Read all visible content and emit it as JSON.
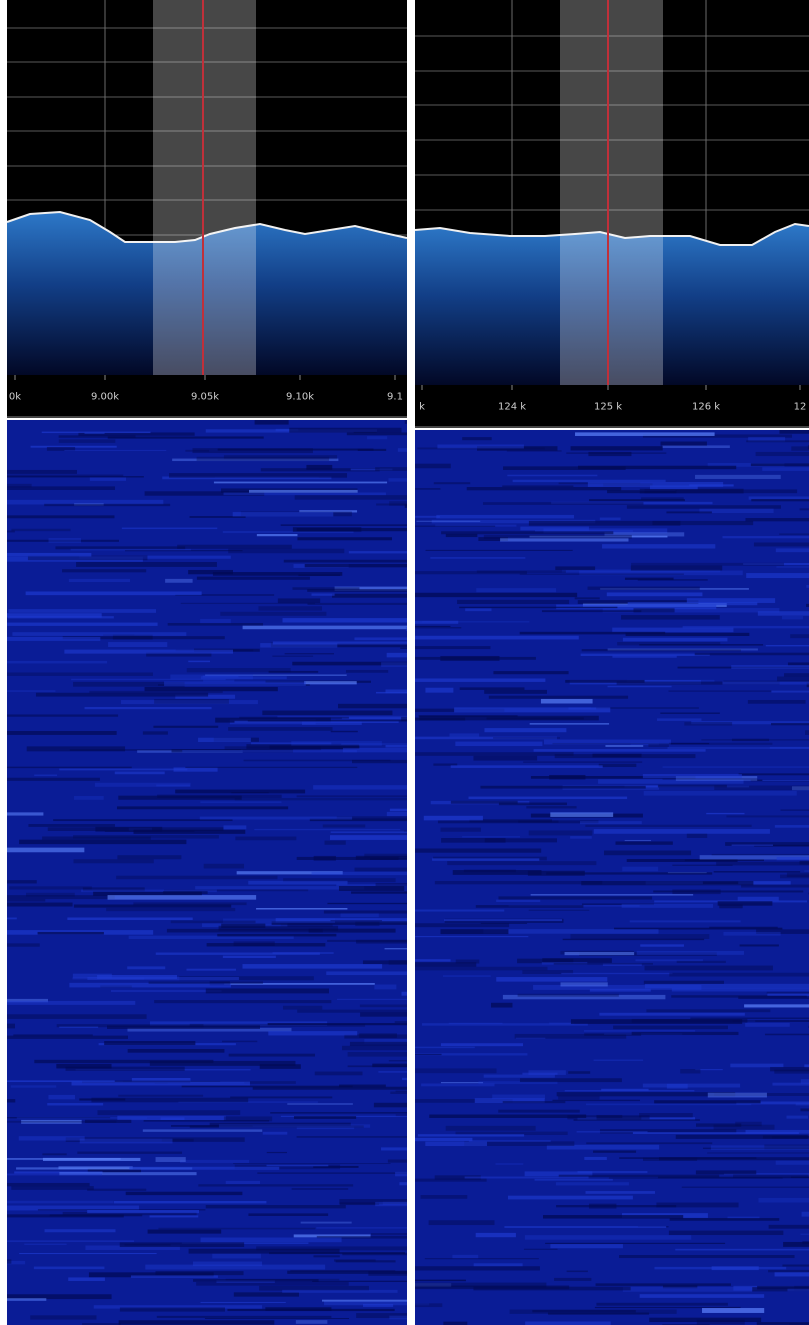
{
  "panels": [
    {
      "tick_labels": [
        "0k",
        "9.00k",
        "9.05k",
        "9.10k",
        "9.1"
      ]
    },
    {
      "tick_labels": [
        "k",
        "124 k",
        "125 k",
        "126 k",
        "12"
      ]
    }
  ]
}
